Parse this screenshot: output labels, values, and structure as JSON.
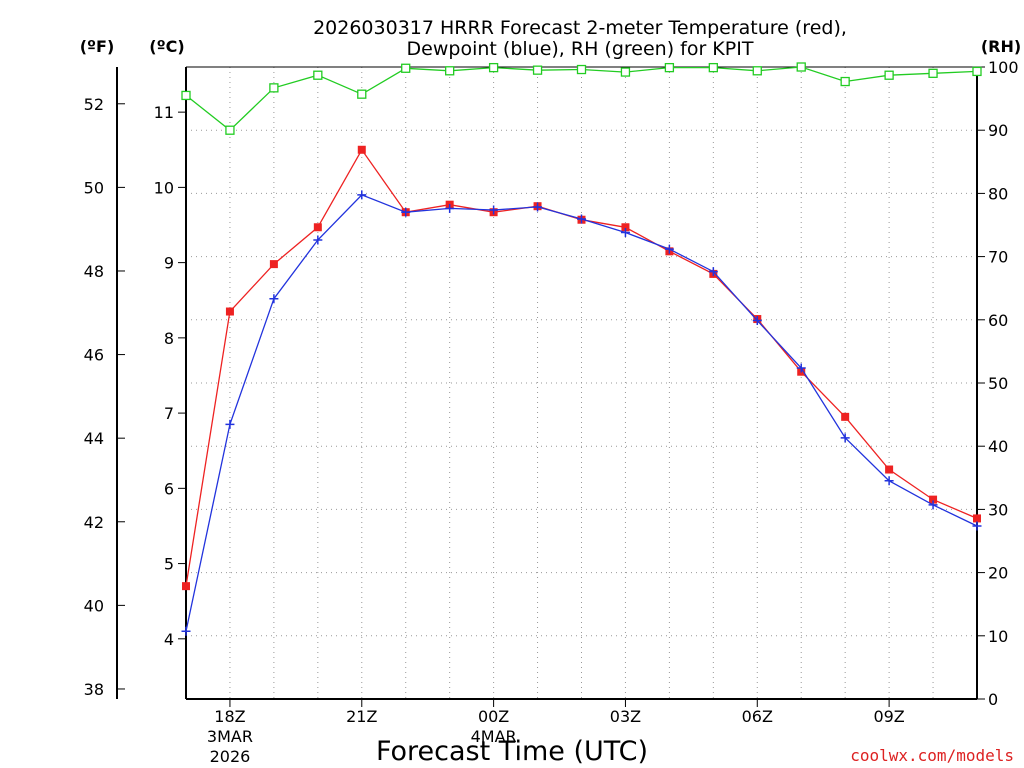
{
  "chart_data": {
    "type": "line",
    "title_line1": "2026030317 HRRR Forecast 2-meter Temperature (red),",
    "title_line2": "Dewpoint (blue), RH (green) for KPIT",
    "xlabel": "Forecast Time (UTC)",
    "credit": "coolwx.com/models",
    "units": {
      "fahrenheit": "(ºF)",
      "celsius": "(ºC)",
      "rh": "(RH)"
    },
    "colors": {
      "temperature": "#ee2222",
      "dewpoint": "#2233dd",
      "rh": "#22cc22",
      "grid": "#999999",
      "credit": "#dd2222"
    },
    "x_hours": [
      17,
      18,
      19,
      20,
      21,
      22,
      23,
      24,
      25,
      26,
      27,
      28,
      29,
      30,
      31,
      32,
      33,
      34,
      35
    ],
    "x_ticks": [
      {
        "hour": 18,
        "label": "18Z",
        "sub1": "3MAR",
        "sub2": "2026"
      },
      {
        "hour": 21,
        "label": "21Z",
        "sub1": "",
        "sub2": ""
      },
      {
        "hour": 24,
        "label": "00Z",
        "sub1": "4MAR",
        "sub2": ""
      },
      {
        "hour": 27,
        "label": "03Z",
        "sub1": "",
        "sub2": ""
      },
      {
        "hour": 30,
        "label": "06Z",
        "sub1": "",
        "sub2": ""
      },
      {
        "hour": 33,
        "label": "09Z",
        "sub1": "",
        "sub2": ""
      }
    ],
    "y_celsius": {
      "range": [
        3.2,
        11.6
      ],
      "ticks": [
        "4",
        "5",
        "6",
        "7",
        "8",
        "9",
        "10",
        "11"
      ]
    },
    "y_fahrenheit": {
      "ticks": [
        "38",
        "40",
        "42",
        "44",
        "46",
        "48",
        "50",
        "52"
      ]
    },
    "y_rh": {
      "range": [
        0,
        100
      ],
      "ticks": [
        "0",
        "10",
        "20",
        "30",
        "40",
        "50",
        "60",
        "70",
        "80",
        "90",
        "100"
      ]
    },
    "series": [
      {
        "name": "Temperature",
        "axis": "celsius",
        "marker": "square-filled",
        "values": [
          4.7,
          8.35,
          8.98,
          9.47,
          10.5,
          9.67,
          9.77,
          9.67,
          9.75,
          9.57,
          9.47,
          9.15,
          8.85,
          8.25,
          7.55,
          6.95,
          6.25,
          5.85,
          5.6
        ]
      },
      {
        "name": "Dewpoint",
        "axis": "celsius",
        "marker": "plus",
        "values": [
          4.1,
          6.85,
          8.52,
          9.3,
          9.9,
          9.67,
          9.72,
          9.7,
          9.74,
          9.58,
          9.4,
          9.18,
          8.88,
          8.23,
          7.6,
          6.67,
          6.1,
          5.78,
          5.5
        ]
      },
      {
        "name": "RH",
        "axis": "rh",
        "marker": "square-open",
        "values": [
          95.5,
          90,
          96.7,
          98.7,
          95.7,
          99.8,
          99.4,
          99.9,
          99.5,
          99.6,
          99.2,
          99.9,
          99.9,
          99.4,
          100,
          97.7,
          98.7,
          99,
          99.3
        ]
      }
    ]
  }
}
